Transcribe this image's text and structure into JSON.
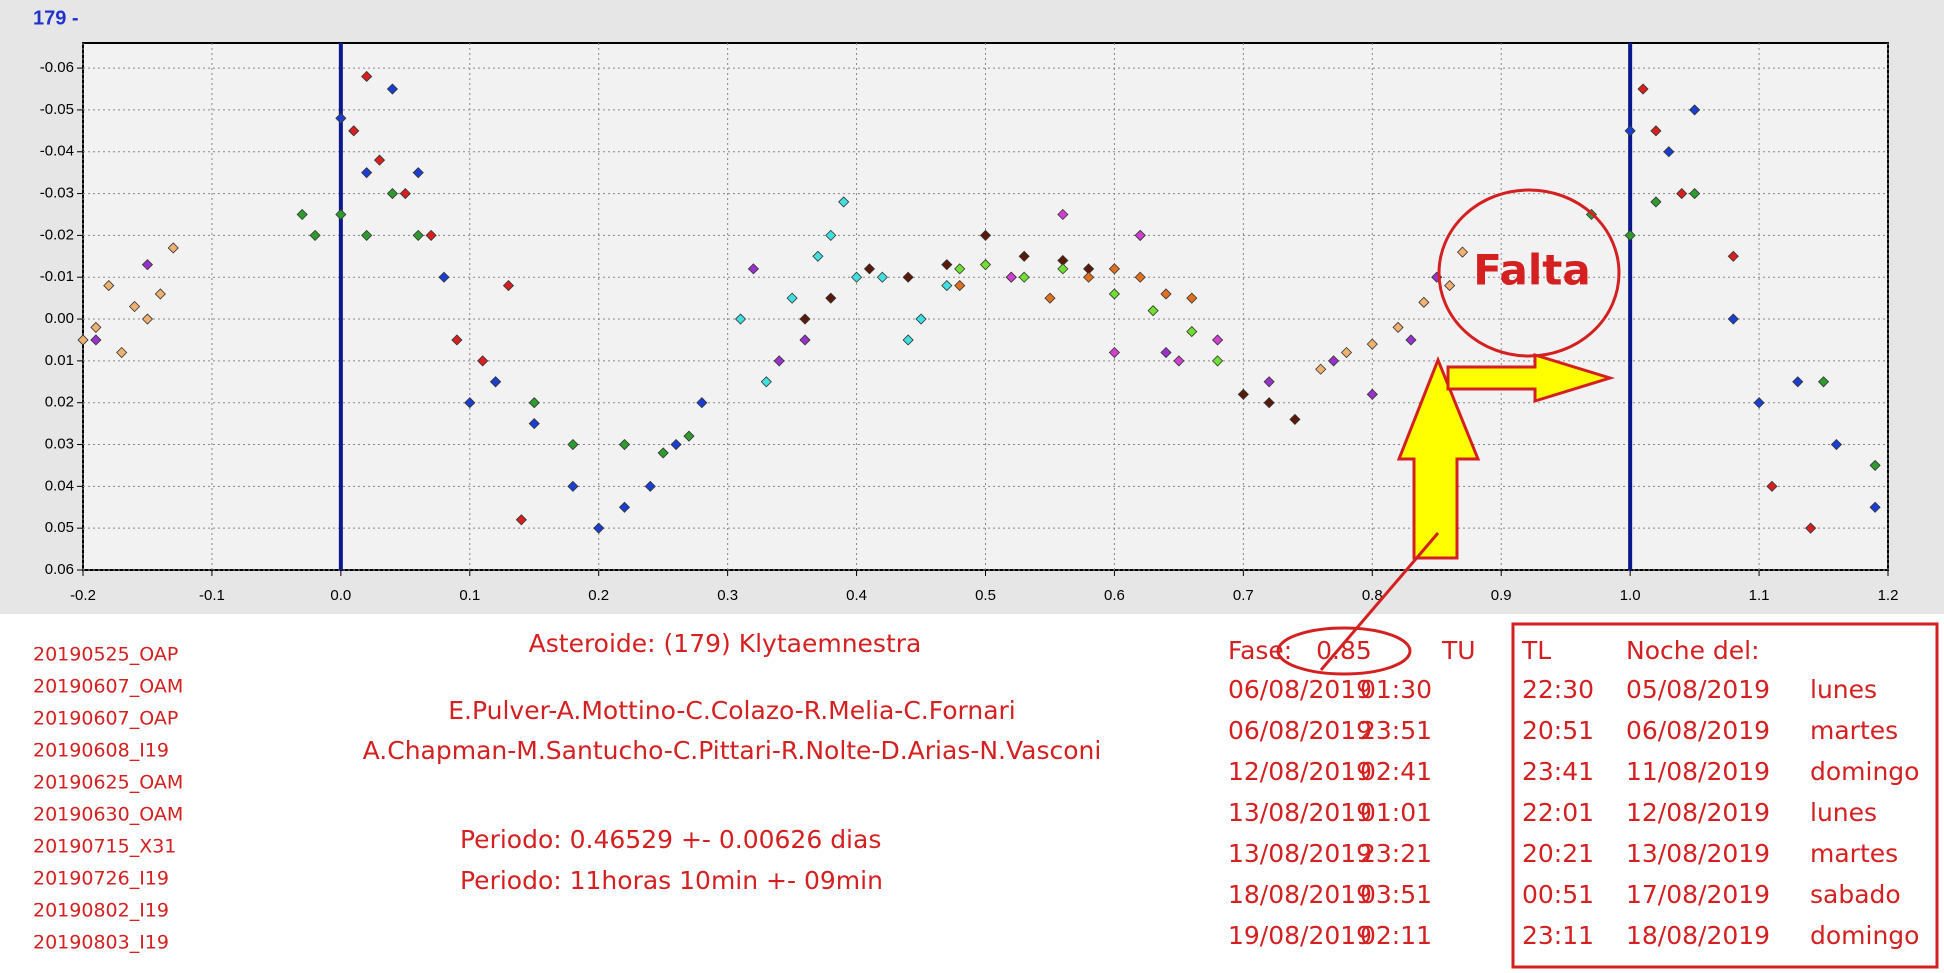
{
  "header_label": "179 -",
  "chart_data": {
    "type": "scatter",
    "title": "Asteroide: (179) Klytaemnestra",
    "authors": [
      "E.Pulver-A.Mottino-C.Colazo-R.Melia-C.Fornari",
      "A.Chapman-M.Santucho-C.Pittari-R.Nolte-D.Arias-N.Vasconi"
    ],
    "period": [
      "Periodo: 0.46529 +- 0.00626 dias",
      "Periodo: 11horas 10min +- 09min"
    ],
    "annotation": "Falta",
    "xlim": [
      -0.2,
      1.2
    ],
    "ylim": [
      -0.066,
      0.06
    ],
    "y_inverted": true,
    "grid": true,
    "xticks": [
      -0.2,
      -0.1,
      {
        "value": 0,
        "label": "0.0"
      },
      0.1,
      0.2,
      0.3,
      0.4,
      0.5,
      0.6,
      0.7,
      0.8,
      0.9,
      {
        "value": 1,
        "label": "1.0"
      },
      1.1,
      1.2
    ],
    "yticks": [
      -0.06,
      -0.05,
      -0.04,
      -0.03,
      -0.02,
      -0.01,
      {
        "value": 0,
        "label": "0.00"
      },
      0.01,
      0.02,
      0.03,
      0.04,
      0.05,
      0.06
    ],
    "vlines": [
      0,
      1
    ],
    "vline_color": "#0a1a8c",
    "series": [
      {
        "name": "20190525_OAP",
        "color": "#f0b070",
        "x": [
          -0.2,
          -0.19,
          -0.18,
          -0.17,
          -0.16,
          -0.15,
          -0.14,
          -0.13,
          0.76,
          0.78,
          0.8,
          0.82,
          0.84,
          0.86,
          0.87
        ],
        "values": [
          0.005,
          0.002,
          -0.008,
          0.008,
          -0.003,
          0.0,
          -0.006,
          -0.017,
          0.012,
          0.008,
          0.006,
          0.002,
          -0.004,
          -0.008,
          -0.016
        ]
      },
      {
        "name": "20190607_OAM",
        "color": "#9932cc",
        "x": [
          -0.19,
          -0.15,
          0.32,
          0.34,
          0.36,
          0.62,
          0.64,
          0.72,
          0.77,
          0.8,
          0.83,
          0.85
        ],
        "values": [
          0.005,
          -0.013,
          -0.012,
          0.01,
          0.005,
          -0.02,
          0.008,
          0.015,
          0.01,
          0.018,
          0.005,
          -0.01
        ]
      },
      {
        "name": "20190607_OAP",
        "color": "#2e9b2e",
        "x": [
          -0.03,
          -0.02,
          0.0,
          0.02,
          0.04,
          0.06,
          0.12,
          0.15,
          0.18,
          0.22,
          0.25,
          0.27,
          0.97,
          1.0,
          1.02,
          1.05,
          1.15,
          1.19
        ],
        "values": [
          -0.025,
          -0.02,
          -0.025,
          -0.02,
          -0.03,
          -0.02,
          0.015,
          0.02,
          0.03,
          0.03,
          0.032,
          0.028,
          -0.025,
          -0.02,
          -0.028,
          -0.03,
          0.015,
          0.035
        ]
      },
      {
        "name": "20190608_I19",
        "color": "#d62020",
        "x": [
          0.01,
          0.02,
          0.03,
          0.05,
          0.07,
          0.09,
          0.11,
          0.13,
          0.14,
          1.01,
          1.02,
          1.04,
          1.08,
          1.11,
          1.14
        ],
        "values": [
          -0.045,
          -0.058,
          -0.038,
          -0.03,
          -0.02,
          0.005,
          0.01,
          -0.008,
          0.048,
          -0.055,
          -0.045,
          -0.03,
          -0.015,
          0.04,
          0.05
        ]
      },
      {
        "name": "20190625_OAM",
        "color": "#1a3fd0",
        "x": [
          0.0,
          0.02,
          0.04,
          0.06,
          0.08,
          0.1,
          0.12,
          0.15,
          0.18,
          0.2,
          0.22,
          0.24,
          0.26,
          0.28,
          1.0,
          1.03,
          1.05,
          1.08,
          1.1,
          1.13,
          1.16,
          1.19
        ],
        "values": [
          -0.048,
          -0.035,
          -0.055,
          -0.035,
          -0.01,
          0.02,
          0.015,
          0.025,
          0.04,
          0.05,
          0.045,
          0.04,
          0.03,
          0.02,
          -0.045,
          -0.04,
          -0.05,
          0.0,
          0.02,
          0.015,
          0.03,
          0.045
        ]
      },
      {
        "name": "20190630_OAM",
        "color": "#40e0e0",
        "x": [
          0.31,
          0.33,
          0.35,
          0.37,
          0.38,
          0.39,
          0.4,
          0.42,
          0.44,
          0.45,
          0.47
        ],
        "values": [
          0.0,
          0.015,
          -0.005,
          -0.015,
          -0.02,
          -0.028,
          -0.01,
          -0.01,
          0.005,
          0.0,
          -0.008
        ]
      },
      {
        "name": "20190715_X31",
        "color": "#5a1a0a",
        "x": [
          0.36,
          0.38,
          0.41,
          0.44,
          0.47,
          0.5,
          0.53,
          0.56,
          0.58,
          0.7,
          0.72,
          0.74
        ],
        "values": [
          0.0,
          -0.005,
          -0.012,
          -0.01,
          -0.013,
          -0.02,
          -0.015,
          -0.014,
          -0.012,
          0.018,
          0.02,
          0.024
        ]
      },
      {
        "name": "20190726_I19",
        "color": "#e07020",
        "x": [
          0.48,
          0.52,
          0.55,
          0.58,
          0.6,
          0.62,
          0.64,
          0.66
        ],
        "values": [
          -0.008,
          -0.01,
          -0.005,
          -0.01,
          -0.012,
          -0.01,
          -0.006,
          -0.005
        ]
      },
      {
        "name": "20190802_I19",
        "color": "#d040d0",
        "x": [
          0.52,
          0.56,
          0.6,
          0.62,
          0.65,
          0.68
        ],
        "values": [
          -0.01,
          -0.025,
          0.008,
          -0.02,
          0.01,
          0.005
        ]
      },
      {
        "name": "20190803_I19",
        "color": "#70e030",
        "x": [
          0.48,
          0.5,
          0.53,
          0.56,
          0.6,
          0.63,
          0.66,
          0.68
        ],
        "values": [
          -0.012,
          -0.013,
          -0.01,
          -0.012,
          -0.006,
          -0.002,
          0.003,
          0.01
        ]
      }
    ]
  },
  "phase_table": {
    "phase_label": "Fase:",
    "phase": 0.85,
    "headers": [
      "TU",
      "TL",
      "Noche del:"
    ],
    "rows": [
      [
        "06/08/2019",
        "01:30",
        "22:30",
        "05/08/2019",
        "lunes"
      ],
      [
        "06/08/2019",
        "23:51",
        "20:51",
        "06/08/2019",
        "martes"
      ],
      [
        "12/08/2019",
        "02:41",
        "23:41",
        "11/08/2019",
        "domingo"
      ],
      [
        "13/08/2019",
        "01:01",
        "22:01",
        "12/08/2019",
        "lunes"
      ],
      [
        "13/08/2019",
        "23:21",
        "20:21",
        "13/08/2019",
        "martes"
      ],
      [
        "18/08/2019",
        "03:51",
        "00:51",
        "17/08/2019",
        "sabado"
      ],
      [
        "19/08/2019",
        "02:11",
        "23:11",
        "18/08/2019",
        "domingo"
      ]
    ]
  }
}
